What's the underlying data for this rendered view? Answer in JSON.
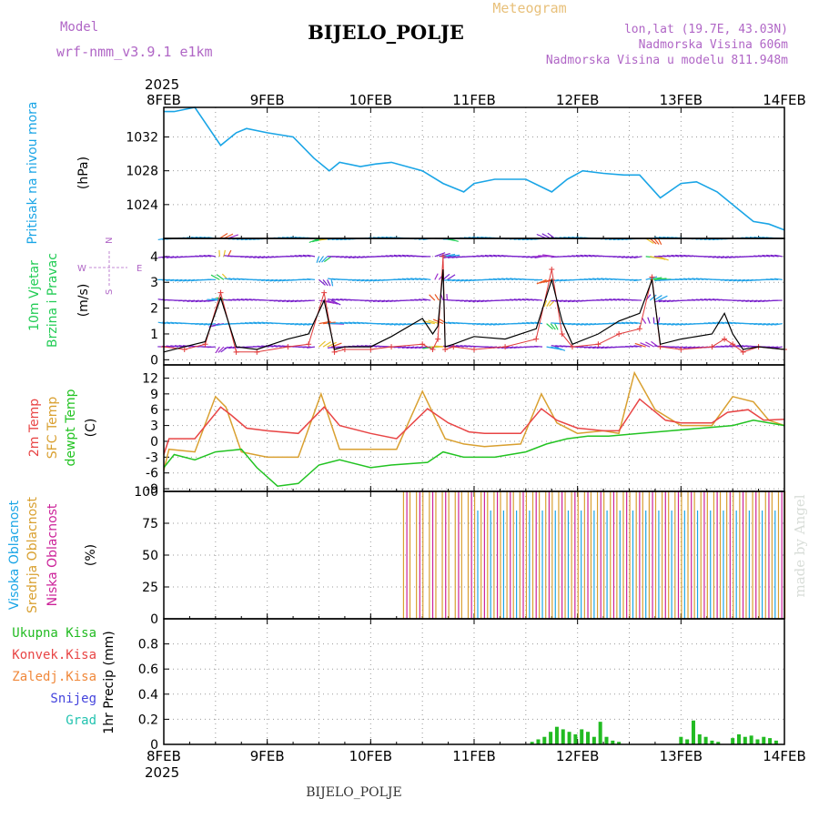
{
  "header": {
    "model_label": "Model",
    "model_name": "wrf-nmm_v3.9.1  e1km",
    "title": "BIJELO_POLJE",
    "meteogram_label": "Meteogram",
    "lonlat": "lon,lat (19.7E, 43.03N)",
    "altitude": "Nadmorska Visina 606m",
    "model_altitude": "Nadmorska Visina u modelu 811.948m",
    "footer_station": "BIJELO_POLJE",
    "watermark": "made by Angel"
  },
  "x_axis": {
    "year": "2025",
    "ticks": [
      "8FEB",
      "9FEB",
      "10FEB",
      "11FEB",
      "12FEB",
      "13FEB",
      "14FEB"
    ],
    "range_days": [
      0,
      6
    ]
  },
  "colors": {
    "pressure": "#1aa5e6",
    "wind_speed": "#000000",
    "gust": "#e03a3a",
    "t2m": "#e84545",
    "sfc": "#d9a030",
    "dewpoint": "#22c322",
    "cloud_high": "#1aa5e6",
    "cloud_mid": "#d9a030",
    "cloud_low": "#cc2299",
    "precip": "#22bb22"
  },
  "chart_data": [
    {
      "type": "line",
      "panel": "pressure",
      "left_labels": [
        "Pritisak na nivou mora",
        "(hPa)"
      ],
      "ylim": [
        1020,
        1035.5
      ],
      "yticks": [
        "1024",
        "1028",
        "1032"
      ],
      "grid": true,
      "series": [
        {
          "x": [
            0,
            0.1,
            0.3,
            0.55,
            0.7,
            0.8,
            1.0,
            1.25,
            1.45,
            1.6,
            1.7,
            1.9,
            2.05,
            2.2,
            2.5,
            2.7,
            2.9,
            3.0,
            3.2,
            3.5,
            3.75,
            3.9,
            4.05,
            4.25,
            4.45,
            4.6,
            4.8,
            5.0,
            5.15,
            5.35,
            5.55,
            5.7,
            5.85,
            6.0
          ],
          "values": [
            1035,
            1035,
            1035.5,
            1031,
            1032.5,
            1033,
            1032.5,
            1032,
            1029.5,
            1028,
            1029,
            1028.5,
            1028.8,
            1029,
            1028,
            1026.5,
            1025.5,
            1026.5,
            1027,
            1027,
            1025.5,
            1027,
            1028,
            1027.7,
            1027.5,
            1027.5,
            1024.8,
            1026.5,
            1026.7,
            1025.5,
            1023.5,
            1022,
            1021.7,
            1021
          ]
        }
      ]
    },
    {
      "type": "line",
      "panel": "wind",
      "left_labels": [
        "10m Vjetar",
        "Brzina i Pravac",
        "(m/s)"
      ],
      "direction_legend": [
        "N",
        "W",
        "E",
        "S"
      ],
      "ylim": [
        -0.2,
        4.7
      ],
      "yticks": [
        "0",
        "1",
        "2",
        "3",
        "4"
      ],
      "grid": true,
      "arrow_rows": [
        0.5,
        1.4,
        2.3,
        3.1,
        4.0,
        4.7
      ],
      "series": [
        {
          "name": "wind speed",
          "x": [
            0,
            0.2,
            0.4,
            0.55,
            0.7,
            0.9,
            1.2,
            1.4,
            1.55,
            1.65,
            1.75,
            2.0,
            2.2,
            2.5,
            2.6,
            2.65,
            2.7,
            2.72,
            2.8,
            3.0,
            3.3,
            3.6,
            3.75,
            3.85,
            3.95,
            4.2,
            4.4,
            4.6,
            4.72,
            4.8,
            5.0,
            5.3,
            5.42,
            5.5,
            5.6,
            5.75,
            6.0
          ],
          "values": [
            0.3,
            0.5,
            0.7,
            2.4,
            0.5,
            0.4,
            0.8,
            1.0,
            2.3,
            0.4,
            0.5,
            0.5,
            0.9,
            1.6,
            1.0,
            1.3,
            3.5,
            0.5,
            0.6,
            0.9,
            0.8,
            1.2,
            3.1,
            1.5,
            0.6,
            1.0,
            1.5,
            1.8,
            3.1,
            0.6,
            0.8,
            1.0,
            1.8,
            1.0,
            0.4,
            0.5,
            0.4
          ]
        },
        {
          "name": "gust",
          "x": [
            0,
            0.2,
            0.4,
            0.55,
            0.7,
            0.9,
            1.2,
            1.4,
            1.55,
            1.65,
            1.75,
            2.0,
            2.2,
            2.5,
            2.6,
            2.65,
            2.7,
            2.72,
            2.8,
            3.0,
            3.3,
            3.6,
            3.75,
            3.85,
            3.95,
            4.2,
            4.4,
            4.6,
            4.72,
            4.8,
            5.0,
            5.3,
            5.42,
            5.5,
            5.6,
            5.75,
            6.0
          ],
          "values": [
            0.5,
            0.4,
            0.6,
            2.6,
            0.3,
            0.3,
            0.5,
            0.6,
            2.6,
            0.3,
            0.4,
            0.4,
            0.5,
            0.6,
            0.4,
            0.8,
            4.0,
            0.4,
            0.5,
            0.4,
            0.5,
            0.8,
            3.5,
            1.0,
            0.5,
            0.6,
            1.0,
            1.2,
            3.2,
            0.5,
            0.4,
            0.5,
            0.8,
            0.6,
            0.3,
            0.5,
            0.4
          ]
        }
      ]
    },
    {
      "type": "line",
      "panel": "temperature",
      "left_labels": [
        "2m Temp",
        "SFC Temp",
        "dewpt Temp",
        "(C)"
      ],
      "ylim": [
        -9.5,
        14.5
      ],
      "yticks": [
        "-9",
        "-6",
        "-3",
        "0",
        "3",
        "6",
        "9",
        "12"
      ],
      "grid": true,
      "series": [
        {
          "name": "2m Temp",
          "x": [
            0,
            0.05,
            0.3,
            0.55,
            0.65,
            0.8,
            1.0,
            1.3,
            1.55,
            1.7,
            2.0,
            2.25,
            2.55,
            2.75,
            2.95,
            3.1,
            3.45,
            3.65,
            3.8,
            4.0,
            4.25,
            4.4,
            4.6,
            4.85,
            5.0,
            5.3,
            5.45,
            5.65,
            5.8,
            6.0
          ],
          "values": [
            -2.5,
            0.5,
            0.5,
            6.5,
            5.0,
            2.5,
            2.0,
            1.5,
            6.5,
            3.0,
            1.5,
            0.5,
            6.2,
            3.5,
            1.8,
            1.5,
            1.5,
            6.2,
            4.0,
            2.5,
            2.0,
            2.0,
            8.0,
            4.0,
            3.5,
            3.5,
            5.5,
            6.0,
            4.0,
            4.2
          ]
        },
        {
          "name": "SFC Temp",
          "x": [
            0,
            0.05,
            0.3,
            0.5,
            0.6,
            0.75,
            1.0,
            1.3,
            1.52,
            1.7,
            2.0,
            2.25,
            2.5,
            2.72,
            2.9,
            3.1,
            3.45,
            3.65,
            3.8,
            4.0,
            4.25,
            4.4,
            4.55,
            4.75,
            5.0,
            5.3,
            5.5,
            5.7,
            5.85,
            6.0
          ],
          "values": [
            -5.5,
            -1.5,
            -2.0,
            8.5,
            6.5,
            -2.0,
            -3.0,
            -3.0,
            9.0,
            -1.5,
            -1.5,
            -1.5,
            9.5,
            0.5,
            -0.5,
            -1.0,
            -0.5,
            9.0,
            3.5,
            1.5,
            2.0,
            1.5,
            13.0,
            6.0,
            3.0,
            3.0,
            8.5,
            7.5,
            4.0,
            3.0
          ]
        },
        {
          "name": "dewpt Temp",
          "x": [
            0,
            0.1,
            0.3,
            0.5,
            0.75,
            0.9,
            1.1,
            1.3,
            1.5,
            1.7,
            2.0,
            2.2,
            2.55,
            2.7,
            2.9,
            3.2,
            3.5,
            3.7,
            3.9,
            4.1,
            4.3,
            4.6,
            4.9,
            5.2,
            5.5,
            5.7,
            6.0
          ],
          "values": [
            -5.0,
            -2.5,
            -3.5,
            -2.0,
            -1.5,
            -5.0,
            -8.5,
            -8.0,
            -4.5,
            -3.5,
            -5.0,
            -4.5,
            -4.0,
            -2.0,
            -3.0,
            -3.0,
            -2.0,
            -0.5,
            0.5,
            1.0,
            1.0,
            1.5,
            2.0,
            2.5,
            3.0,
            4.0,
            3.0
          ]
        }
      ]
    },
    {
      "type": "bar",
      "panel": "cloud_cover",
      "left_labels": [
        "Visoka Oblacnost",
        "Srednja Oblacnost",
        "Niska Oblacnost",
        "(%)"
      ],
      "ylim": [
        0,
        100
      ],
      "yticks": [
        "0",
        "25",
        "50",
        "75",
        "100"
      ],
      "grid": true,
      "series": [
        {
          "name": "Niska Oblacnost",
          "start": 2.35,
          "end": 6.0,
          "step": 0.125,
          "level": 100
        },
        {
          "name": "Srednja Oblacnost",
          "start": 2.3,
          "end": 6.0,
          "step": 0.0625,
          "level": 100
        },
        {
          "name": "Visoka Oblacnost",
          "start": 3.0,
          "end": 6.0,
          "step": 0.125,
          "level": 85
        }
      ]
    },
    {
      "type": "bar",
      "panel": "precipitation",
      "left_labels": [
        "1hr Precip (mm)"
      ],
      "legend": [
        "Ukupna Kisa",
        "Konvek.Kisa",
        "Zaledj.Kisa",
        "Snijeg",
        "Grad"
      ],
      "ylim": [
        0,
        1.0
      ],
      "yticks": [
        "0",
        "0.2",
        "0.4",
        "0.6",
        "0.8"
      ],
      "grid": true,
      "series": [
        {
          "name": "Ukupna Kisa",
          "x": [
            3.56,
            3.62,
            3.68,
            3.74,
            3.8,
            3.86,
            3.92,
            3.98,
            4.04,
            4.1,
            4.16,
            4.22,
            4.28,
            4.34,
            4.4,
            5.0,
            5.06,
            5.12,
            5.18,
            5.24,
            5.3,
            5.36,
            5.5,
            5.56,
            5.62,
            5.68,
            5.74,
            5.8,
            5.86,
            5.92
          ],
          "values": [
            0.02,
            0.04,
            0.06,
            0.1,
            0.14,
            0.12,
            0.1,
            0.08,
            0.12,
            0.1,
            0.06,
            0.18,
            0.06,
            0.03,
            0.02,
            0.06,
            0.04,
            0.19,
            0.08,
            0.06,
            0.03,
            0.02,
            0.05,
            0.08,
            0.06,
            0.07,
            0.04,
            0.06,
            0.05,
            0.03
          ]
        }
      ]
    }
  ]
}
